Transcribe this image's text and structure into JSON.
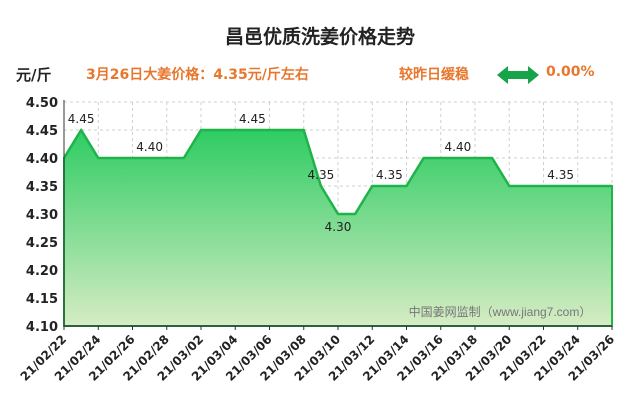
{
  "header": {
    "title": "昌邑优质洗姜价格走势",
    "unit": "元/斤",
    "price_note": "3月26日大姜价格：4.35元/斤左右",
    "trend_label": "较昨日缓稳",
    "trend_change": "0.00%",
    "trend_icon": "double-arrow-icon"
  },
  "colors": {
    "line": "#1fb34a",
    "fill_top": "#2ecc63",
    "fill_bottom": "#d6ecc4",
    "accent": "#e8772e",
    "arrow": "#16a34a",
    "grid": "#cfcfcf"
  },
  "chart_data": {
    "type": "area",
    "x": [
      "21/02/22",
      "21/02/23",
      "21/02/24",
      "21/02/25",
      "21/02/26",
      "21/02/27",
      "21/02/28",
      "21/03/01",
      "21/03/02",
      "21/03/03",
      "21/03/04",
      "21/03/05",
      "21/03/06",
      "21/03/07",
      "21/03/08",
      "21/03/09",
      "21/03/10",
      "21/03/11",
      "21/03/12",
      "21/03/13",
      "21/03/14",
      "21/03/15",
      "21/03/16",
      "21/03/17",
      "21/03/18",
      "21/03/19",
      "21/03/20",
      "21/03/21",
      "21/03/22",
      "21/03/23",
      "21/03/24",
      "21/03/25",
      "21/03/26"
    ],
    "values": [
      4.4,
      4.45,
      4.4,
      4.4,
      4.4,
      4.4,
      4.4,
      4.4,
      4.45,
      4.45,
      4.45,
      4.45,
      4.45,
      4.45,
      4.45,
      4.35,
      4.3,
      4.3,
      4.35,
      4.35,
      4.35,
      4.4,
      4.4,
      4.4,
      4.4,
      4.4,
      4.35,
      4.35,
      4.35,
      4.35,
      4.35,
      4.35,
      4.35
    ],
    "x_ticks": [
      "21/02/22",
      "21/02/24",
      "21/02/26",
      "21/02/28",
      "21/03/02",
      "21/03/04",
      "21/03/06",
      "21/03/08",
      "21/03/10",
      "21/03/12",
      "21/03/14",
      "21/03/16",
      "21/03/18",
      "21/03/20",
      "21/03/22",
      "21/03/24",
      "21/03/26"
    ],
    "y_ticks": [
      "4.50",
      "4.45",
      "4.40",
      "4.35",
      "4.30",
      "4.25",
      "4.20",
      "4.15",
      "4.10"
    ],
    "ylim": [
      4.1,
      4.5
    ],
    "annotations": [
      {
        "index": 1,
        "text": "4.45"
      },
      {
        "index": 5,
        "text": "4.40"
      },
      {
        "index": 11,
        "text": "4.45"
      },
      {
        "index": 15,
        "text": "4.35"
      },
      {
        "index": 16,
        "text": "4.30"
      },
      {
        "index": 19,
        "text": "4.35"
      },
      {
        "index": 23,
        "text": "4.40"
      },
      {
        "index": 29,
        "text": "4.35"
      }
    ],
    "watermark": "中国姜网监制（www.jiang7.com）",
    "grid": true,
    "legend": "none"
  }
}
